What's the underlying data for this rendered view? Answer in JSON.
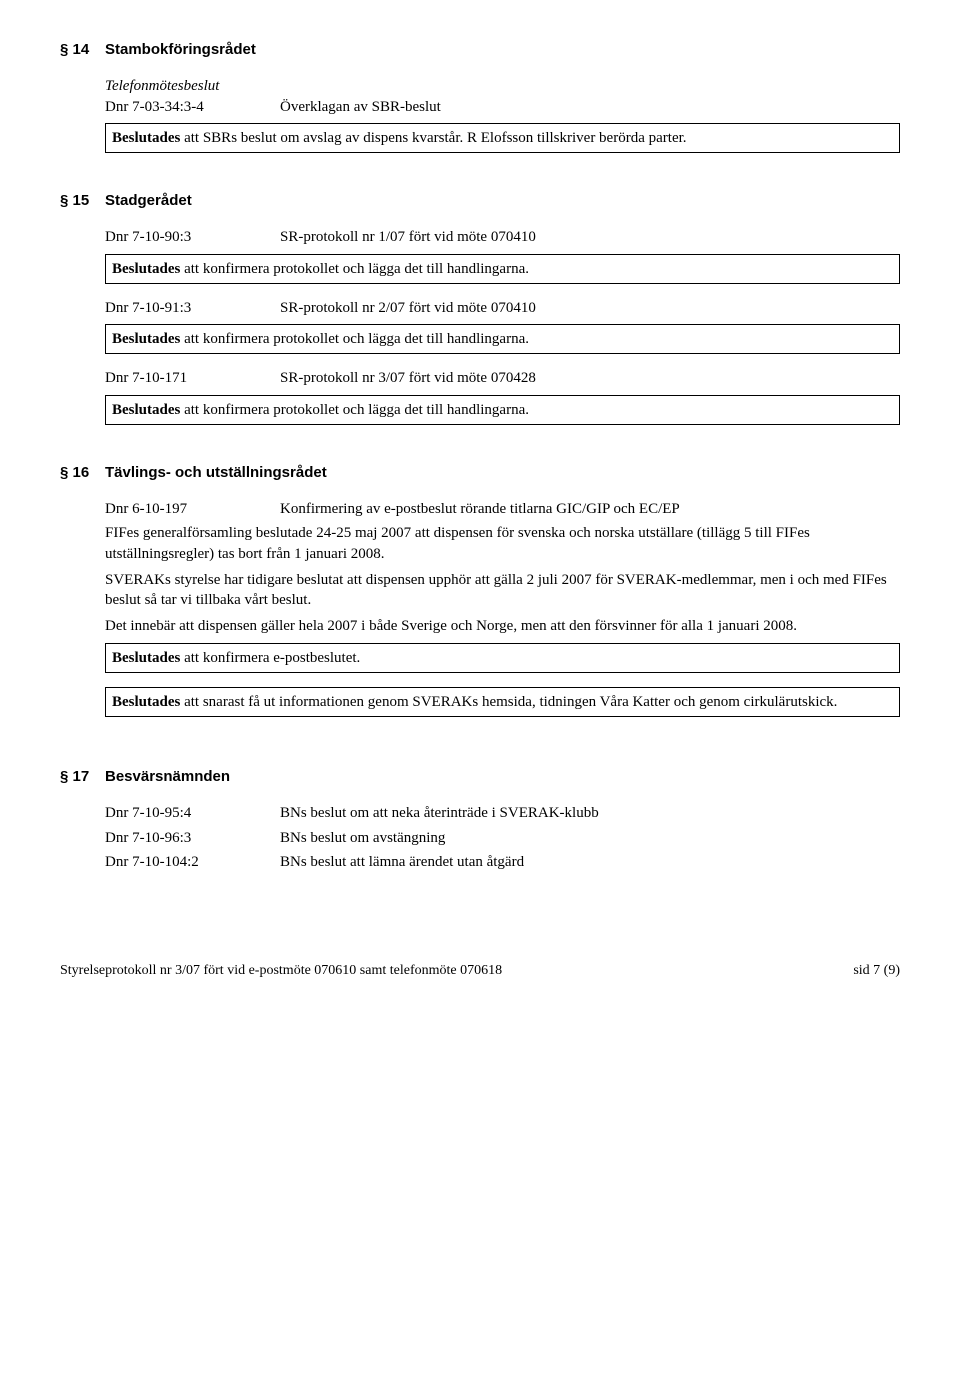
{
  "s14": {
    "num": "§ 14",
    "title": "Stambokföringsrådet",
    "subhead": "Telefonmötesbeslut",
    "row1_dnr": "Dnr 7-03-34:3-4",
    "row1_text": "Överklagan av SBR-beslut",
    "box": "Beslutades att SBRs beslut om avslag av dispens kvarstår. R Elofsson tillskriver berörda parter."
  },
  "s15": {
    "num": "§ 15",
    "title": "Stadgerådet",
    "r1_dnr": "Dnr 7-10-90:3",
    "r1_text": "SR-protokoll nr 1/07 fört vid möte 070410",
    "r1_box": "Beslutades att konfirmera protokollet och lägga det till handlingarna.",
    "r2_dnr": "Dnr 7-10-91:3",
    "r2_text": "SR-protokoll nr 2/07 fört vid möte 070410",
    "r2_box": "Beslutades att konfirmera protokollet och lägga det till handlingarna.",
    "r3_dnr": "Dnr 7-10-171",
    "r3_text": "SR-protokoll nr 3/07 fört vid möte 070428",
    "r3_box": "Beslutades att konfirmera protokollet och lägga det till handlingarna."
  },
  "s16": {
    "num": "§ 16",
    "title": "Tävlings- och utställningsrådet",
    "r1_dnr": "Dnr 6-10-197",
    "r1_text": "Konfirmering av e-postbeslut rörande titlarna GIC/GIP och EC/EP",
    "p1": "FIFes generalförsamling beslutade 24-25 maj 2007 att dispensen för svenska och norska utställare (tillägg 5 till FIFes utställningsregler) tas bort från 1 januari 2008.",
    "p2": "SVERAKs styrelse har tidigare beslutat att dispensen upphör att gälla 2 juli 2007 för SVERAK-medlemmar, men i och med FIFes beslut så tar vi tillbaka vårt beslut.",
    "p3": "Det innebär att dispensen gäller hela 2007 i både Sverige och Norge, men att den försvinner för alla 1 januari 2008.",
    "box1": "Beslutades att konfirmera e-postbeslutet.",
    "box2": "Beslutades att snarast få ut informationen genom SVERAKs hemsida, tidningen Våra Katter och genom cirkulärutskick."
  },
  "s17": {
    "num": "§ 17",
    "title": "Besvärsnämnden",
    "r1_dnr": "Dnr 7-10-95:4",
    "r1_text": "BNs beslut om att neka återinträde i SVERAK-klubb",
    "r2_dnr": "Dnr 7-10-96:3",
    "r2_text": "BNs beslut om avstängning",
    "r3_dnr": "Dnr 7-10-104:2",
    "r3_text": "BNs beslut att lämna ärendet utan åtgärd"
  },
  "footer": {
    "left": "Styrelseprotokoll nr 3/07 fört vid e-postmöte 070610 samt telefonmöte 070618",
    "right": "sid 7 (9)"
  },
  "bold_word": "Beslutades"
}
